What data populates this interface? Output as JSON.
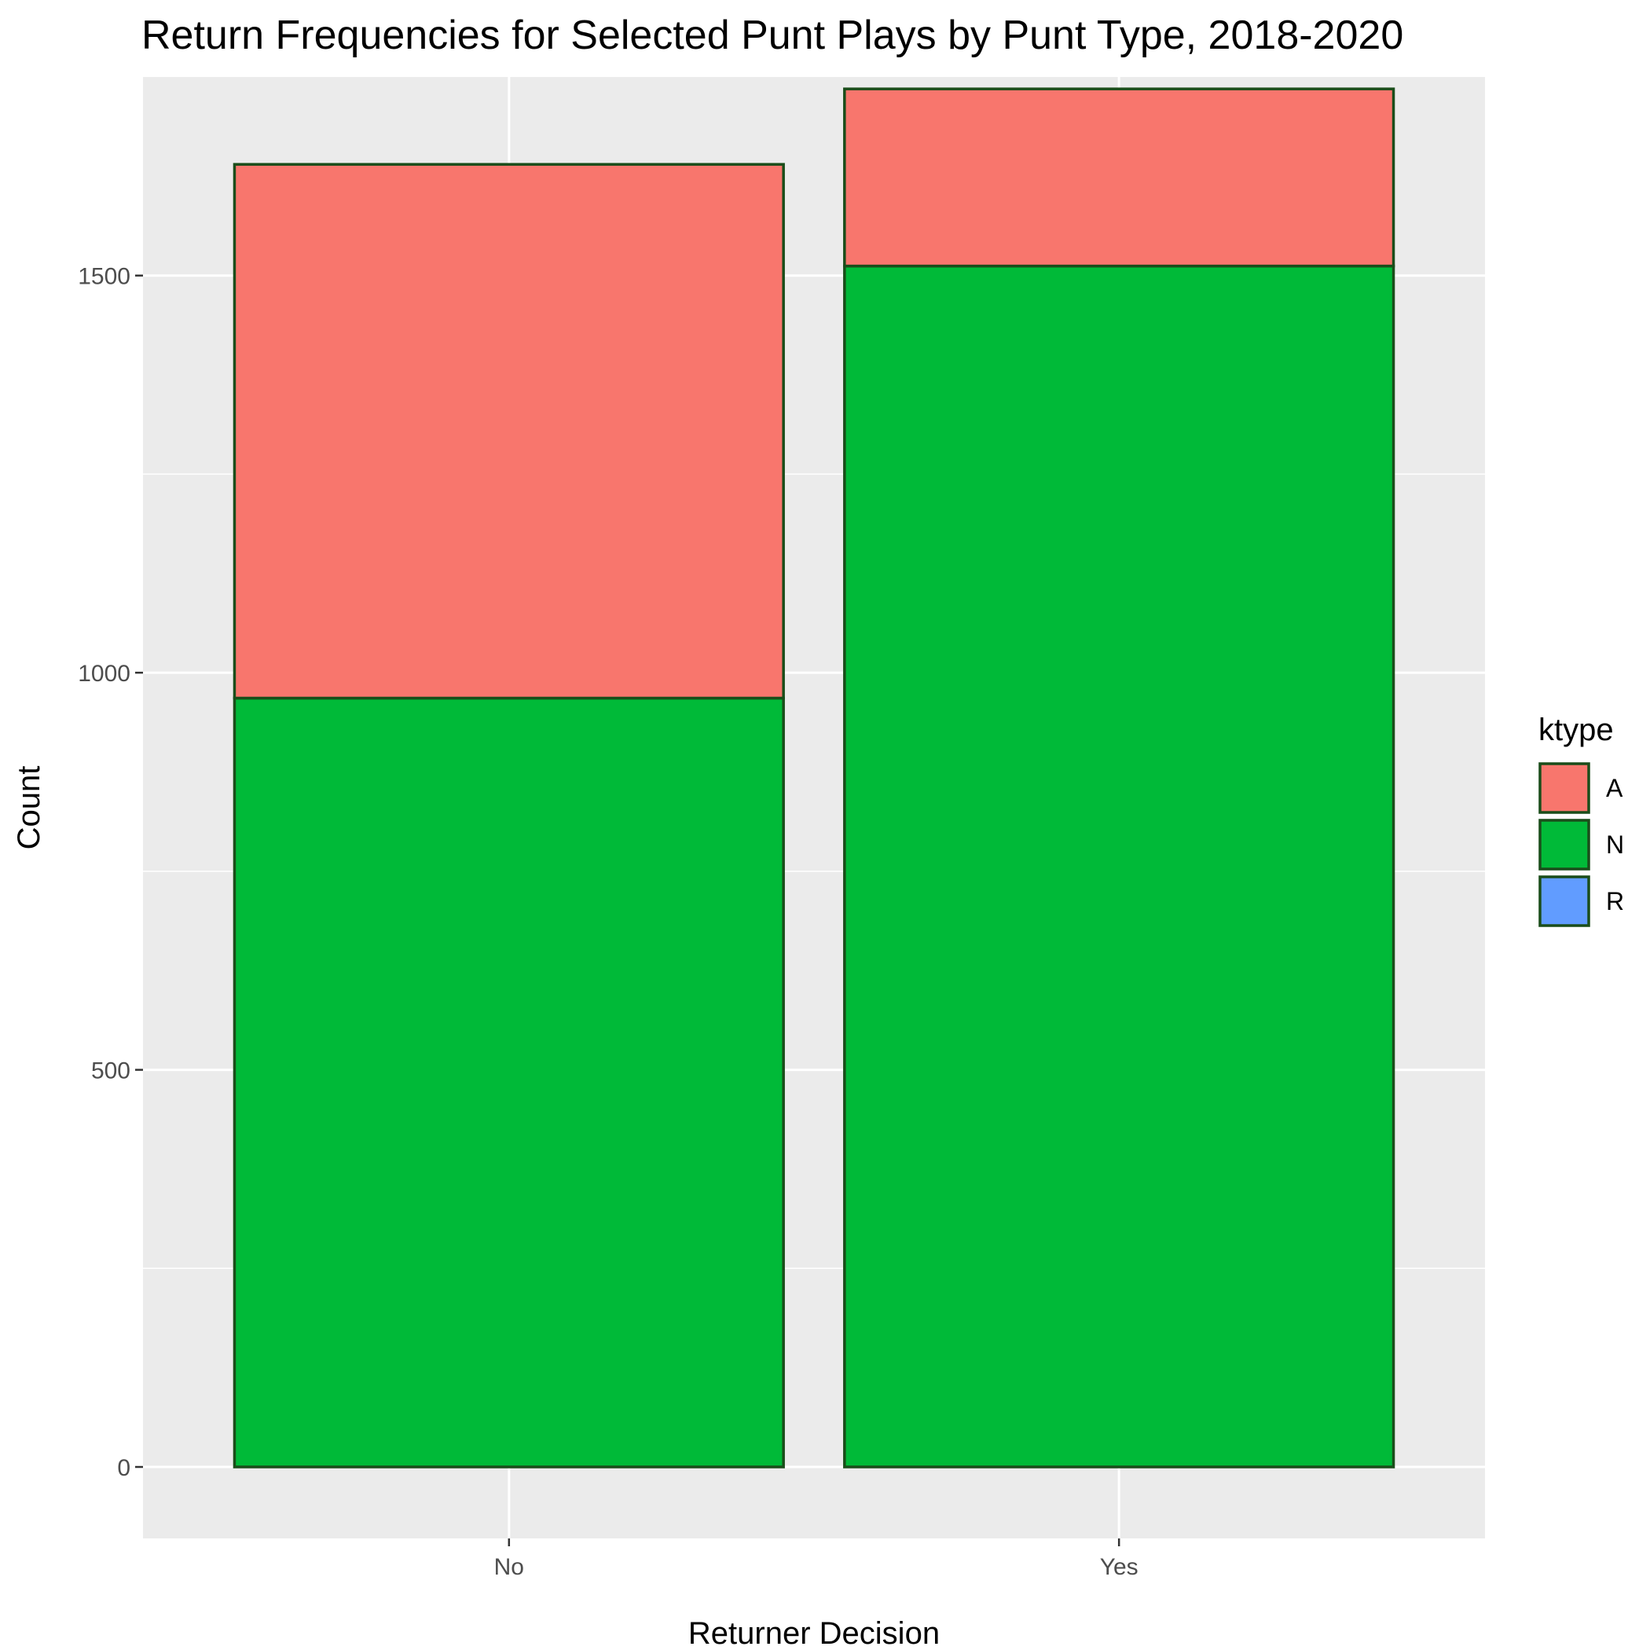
{
  "chart_data": {
    "type": "bar",
    "stacked": true,
    "title": "Return Frequencies for Selected Punt Plays by Punt Type, 2018-2020",
    "xlabel": "Returner Decision",
    "ylabel": "Count",
    "categories": [
      "No",
      "Yes"
    ],
    "series": [
      {
        "name": "A",
        "color": "#F8766D",
        "values": [
          672,
          223
        ]
      },
      {
        "name": "N",
        "color": "#00BA38",
        "values": [
          968,
          1512
        ]
      },
      {
        "name": "R",
        "color": "#619CFF",
        "values": [
          0,
          0
        ]
      }
    ],
    "ylim": [
      -90,
      1750
    ],
    "y_ticks": [
      0,
      500,
      1000,
      1500
    ],
    "y_tick_labels": [
      "0",
      "500",
      "1000",
      "1500"
    ],
    "bar_outline_color": "#1a4d1a",
    "panel_background": "#ebebeb",
    "grid": true,
    "legend": {
      "title": "ktype",
      "placement": "right"
    }
  }
}
